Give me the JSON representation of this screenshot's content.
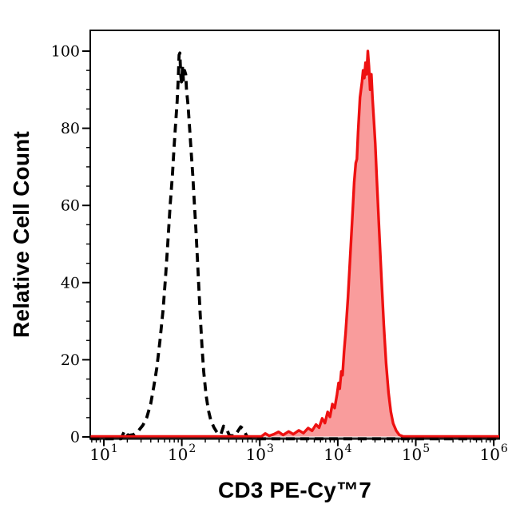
{
  "chart_data": {
    "type": "area",
    "chart_kind": "flow-cytometry-histogram-overlay",
    "title": "",
    "xlabel": "CD3 PE-Cy™7",
    "ylabel": "Relative Cell Count",
    "x_scale": "log10",
    "grid": false,
    "legend": "none",
    "frame": true,
    "colors": {
      "frame": "#000000",
      "control_line": "#000000",
      "sample_line": "#ee1111",
      "sample_fill": "#f99c9c",
      "baseline_overlap": "#8b1111"
    },
    "x_axis": {
      "tick_base": "10",
      "major_tick_exponents": [
        1,
        2,
        3,
        4,
        5,
        6
      ],
      "minor_tick_multiples": [
        2,
        3,
        4,
        5,
        6,
        7,
        8,
        9
      ],
      "range_log10": [
        0.826,
        6.07
      ]
    },
    "y_axis": {
      "major_ticks": [
        0,
        20,
        40,
        60,
        80,
        100
      ],
      "minor_step": 5,
      "range": [
        0,
        105.4
      ]
    },
    "series": [
      {
        "name": "black-dashed-control-histogram",
        "line_style": "dashed",
        "color": "#000000",
        "fill": "none",
        "peak_log10x": 1.975,
        "peak_height": 99.5,
        "points_log10x_y": [
          [
            0.83,
            0
          ],
          [
            1.22,
            0
          ],
          [
            1.265,
            1.6
          ],
          [
            1.31,
            0.4
          ],
          [
            1.38,
            0.6
          ],
          [
            1.44,
            1.5
          ],
          [
            1.5,
            3
          ],
          [
            1.55,
            5
          ],
          [
            1.6,
            8.5
          ],
          [
            1.64,
            13
          ],
          [
            1.68,
            18
          ],
          [
            1.72,
            25
          ],
          [
            1.76,
            33
          ],
          [
            1.79,
            41
          ],
          [
            1.82,
            50
          ],
          [
            1.85,
            60
          ],
          [
            1.88,
            68
          ],
          [
            1.9,
            75
          ],
          [
            1.92,
            81
          ],
          [
            1.94,
            87
          ],
          [
            1.955,
            93
          ],
          [
            1.965,
            99
          ],
          [
            1.975,
            99.5
          ],
          [
            1.985,
            94
          ],
          [
            1.995,
            92
          ],
          [
            2.01,
            96
          ],
          [
            2.02,
            92.5
          ],
          [
            2.035,
            95
          ],
          [
            2.05,
            94
          ],
          [
            2.06,
            90
          ],
          [
            2.08,
            86
          ],
          [
            2.1,
            80
          ],
          [
            2.12,
            74
          ],
          [
            2.14,
            68
          ],
          [
            2.16,
            61
          ],
          [
            2.18,
            54
          ],
          [
            2.2,
            46
          ],
          [
            2.22,
            38
          ],
          [
            2.24,
            30
          ],
          [
            2.26,
            23
          ],
          [
            2.28,
            17
          ],
          [
            2.31,
            11
          ],
          [
            2.34,
            7
          ],
          [
            2.37,
            4.5
          ],
          [
            2.41,
            2.5
          ],
          [
            2.45,
            1.2
          ],
          [
            2.5,
            0.6
          ],
          [
            2.535,
            2.8
          ],
          [
            2.57,
            2.2
          ],
          [
            2.61,
            0.4
          ],
          [
            2.68,
            0.3
          ],
          [
            2.755,
            2.6
          ],
          [
            2.79,
            2.0
          ],
          [
            2.83,
            0.3
          ],
          [
            2.9,
            0
          ],
          [
            6.07,
            0
          ]
        ]
      },
      {
        "name": "red-filled-stained-histogram",
        "line_style": "solid",
        "color": "#ee1111",
        "fill": "#f99c9c",
        "peak_log10x": 4.385,
        "peak_height": 100,
        "points_log10x_y": [
          [
            0.83,
            0
          ],
          [
            3.02,
            0
          ],
          [
            3.07,
            0.9
          ],
          [
            3.12,
            0.2
          ],
          [
            3.18,
            0.7
          ],
          [
            3.24,
            1.3
          ],
          [
            3.3,
            0.5
          ],
          [
            3.37,
            1.4
          ],
          [
            3.43,
            0.7
          ],
          [
            3.5,
            1.7
          ],
          [
            3.56,
            1.0
          ],
          [
            3.62,
            2.3
          ],
          [
            3.67,
            1.6
          ],
          [
            3.72,
            3.2
          ],
          [
            3.76,
            2.4
          ],
          [
            3.8,
            4.8
          ],
          [
            3.835,
            3.6
          ],
          [
            3.87,
            6.5
          ],
          [
            3.9,
            5.2
          ],
          [
            3.93,
            8.5
          ],
          [
            3.96,
            7.5
          ],
          [
            3.99,
            11
          ],
          [
            4.01,
            14
          ],
          [
            4.025,
            12.5
          ],
          [
            4.045,
            17
          ],
          [
            4.06,
            16
          ],
          [
            4.08,
            22
          ],
          [
            4.1,
            27
          ],
          [
            4.13,
            36
          ],
          [
            4.16,
            47
          ],
          [
            4.19,
            58
          ],
          [
            4.21,
            66
          ],
          [
            4.23,
            71
          ],
          [
            4.245,
            72
          ],
          [
            4.26,
            79
          ],
          [
            4.285,
            88
          ],
          [
            4.31,
            92
          ],
          [
            4.325,
            95
          ],
          [
            4.34,
            93
          ],
          [
            4.355,
            97
          ],
          [
            4.37,
            94
          ],
          [
            4.385,
            100
          ],
          [
            4.4,
            96
          ],
          [
            4.415,
            90
          ],
          [
            4.43,
            94
          ],
          [
            4.445,
            88
          ],
          [
            4.46,
            83
          ],
          [
            4.48,
            76
          ],
          [
            4.5,
            67
          ],
          [
            4.53,
            54
          ],
          [
            4.56,
            41
          ],
          [
            4.59,
            29
          ],
          [
            4.62,
            19
          ],
          [
            4.65,
            11.5
          ],
          [
            4.68,
            6.5
          ],
          [
            4.71,
            3.5
          ],
          [
            4.75,
            1.6
          ],
          [
            4.79,
            0.5
          ],
          [
            4.84,
            0
          ],
          [
            6.07,
            0
          ]
        ]
      }
    ]
  }
}
